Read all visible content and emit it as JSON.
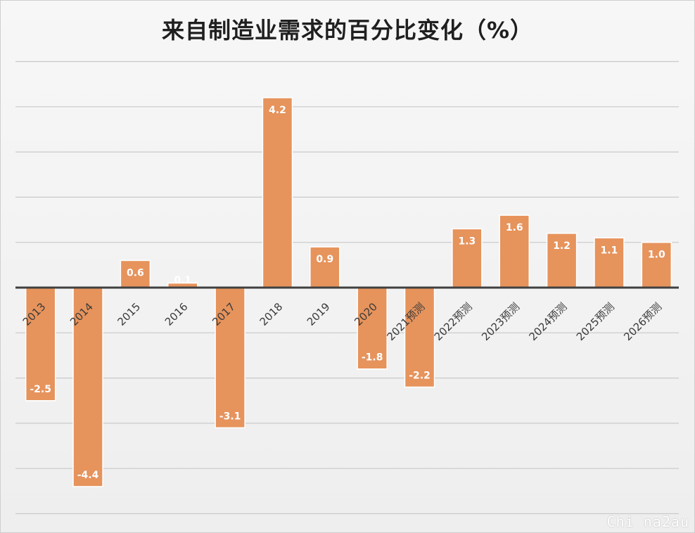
{
  "chart_data": {
    "type": "bar",
    "title": "来自制造业需求的百分比变化（%）",
    "categories": [
      "2013",
      "2014",
      "2015",
      "2016",
      "2017",
      "2018",
      "2019",
      "2020",
      "2021预测",
      "2022预测",
      "2023预测",
      "2024预测",
      "2025预测",
      "2026预测"
    ],
    "series": [
      {
        "values": [
          -2.5,
          -4.4,
          0.6,
          0.1,
          -3.1,
          4.2,
          0.9,
          -1.8,
          -2.2,
          1.3,
          1.6,
          1.2,
          1.1,
          1.0
        ]
      }
    ],
    "data_labels": [
      "-2.5",
      "-4.4",
      "0.6",
      "0.1",
      "-3.1",
      "4.2",
      "0.9",
      "-1.8",
      "-2.2",
      "1.3",
      "1.6",
      "1.2",
      "1.1",
      "1.0"
    ],
    "ylim": [
      -5,
      5
    ],
    "grid": true,
    "legend": "none",
    "bar_color": "#e6935c"
  },
  "watermark": "Chi na2au"
}
